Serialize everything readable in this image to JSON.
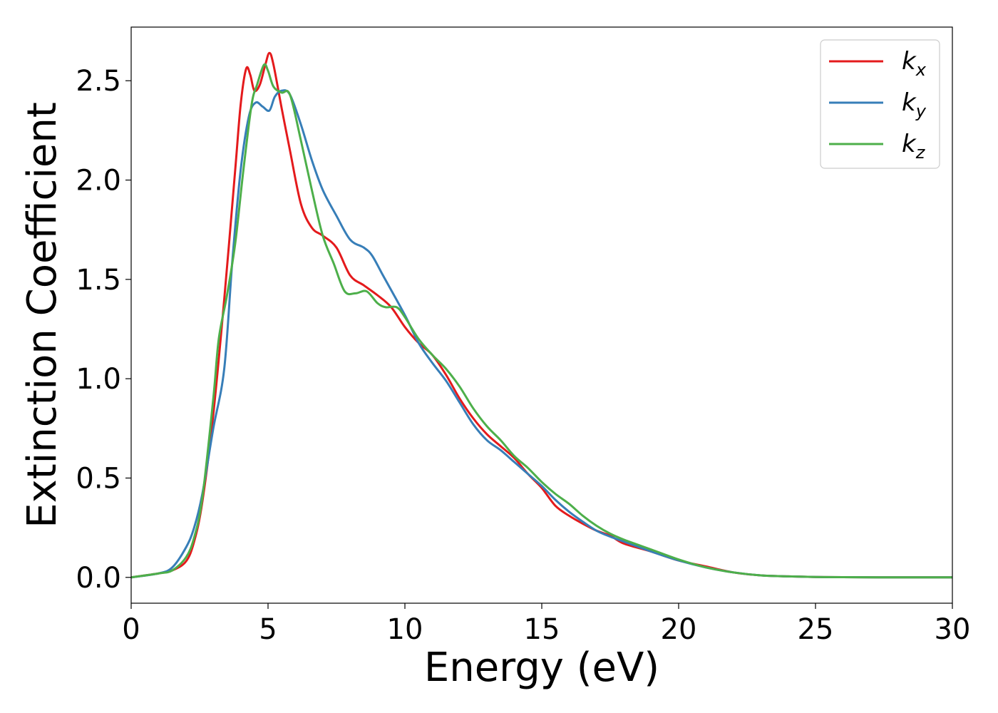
{
  "chart_data": {
    "type": "line",
    "title": "",
    "xlabel": "Energy (eV)",
    "ylabel": "Extinction Coefficient",
    "xlim": [
      0,
      30
    ],
    "ylim": [
      -0.13,
      2.77
    ],
    "xticks": [
      0,
      5,
      10,
      15,
      20,
      25,
      30
    ],
    "yticks": [
      0.0,
      0.5,
      1.0,
      1.5,
      2.0,
      2.5
    ],
    "xtick_labels": [
      "0",
      "5",
      "10",
      "15",
      "20",
      "25",
      "30"
    ],
    "ytick_labels": [
      "0.0",
      "0.5",
      "1.0",
      "1.5",
      "2.0",
      "2.5"
    ],
    "grid": false,
    "legend_position": "top-right",
    "series": [
      {
        "name": "k",
        "subscript": "x",
        "color": "#e41a1c",
        "x": [
          0,
          1,
          1.5,
          2,
          2.3,
          2.6,
          3,
          3.4,
          3.8,
          4.0,
          4.2,
          4.35,
          4.5,
          4.7,
          4.9,
          5.05,
          5.2,
          5.5,
          5.8,
          6.2,
          6.6,
          7.0,
          7.5,
          8.0,
          8.5,
          9.0,
          9.5,
          10,
          10.5,
          11,
          11.5,
          12,
          12.5,
          13,
          13.5,
          14,
          14.5,
          15,
          15.5,
          16,
          16.5,
          17,
          17.5,
          18,
          19,
          20,
          21,
          22,
          23,
          24,
          25,
          26,
          28,
          30
        ],
        "y": [
          0,
          0.02,
          0.035,
          0.08,
          0.18,
          0.38,
          0.82,
          1.4,
          2.05,
          2.38,
          2.56,
          2.53,
          2.45,
          2.48,
          2.58,
          2.64,
          2.58,
          2.36,
          2.15,
          1.88,
          1.76,
          1.72,
          1.66,
          1.52,
          1.47,
          1.42,
          1.36,
          1.26,
          1.18,
          1.12,
          1.02,
          0.9,
          0.8,
          0.72,
          0.66,
          0.6,
          0.52,
          0.45,
          0.36,
          0.31,
          0.27,
          0.235,
          0.21,
          0.17,
          0.13,
          0.085,
          0.055,
          0.025,
          0.01,
          0.005,
          0.002,
          0.001,
          0,
          0
        ]
      },
      {
        "name": "k",
        "subscript": "y",
        "color": "#377eb8",
        "x": [
          0,
          1,
          1.5,
          2,
          2.3,
          2.6,
          3,
          3.4,
          3.7,
          4.0,
          4.3,
          4.55,
          4.8,
          5.05,
          5.25,
          5.5,
          5.8,
          6.2,
          6.6,
          7.0,
          7.5,
          8.0,
          8.5,
          8.8,
          9.2,
          10,
          10.5,
          11,
          11.5,
          12,
          12.5,
          13,
          13.5,
          14,
          14.5,
          15,
          15.5,
          16,
          16.5,
          17,
          17.5,
          18,
          19,
          20,
          21,
          22,
          23,
          24,
          25,
          26,
          28,
          30
        ],
        "y": [
          0,
          0.02,
          0.05,
          0.15,
          0.25,
          0.42,
          0.75,
          1.05,
          1.6,
          2.05,
          2.32,
          2.39,
          2.37,
          2.35,
          2.42,
          2.45,
          2.43,
          2.28,
          2.1,
          1.95,
          1.82,
          1.7,
          1.66,
          1.62,
          1.52,
          1.32,
          1.18,
          1.08,
          0.99,
          0.88,
          0.77,
          0.69,
          0.64,
          0.58,
          0.52,
          0.46,
          0.39,
          0.33,
          0.28,
          0.235,
          0.205,
          0.18,
          0.13,
          0.085,
          0.05,
          0.025,
          0.01,
          0.005,
          0.002,
          0.001,
          0,
          0
        ]
      },
      {
        "name": "k",
        "subscript": "z",
        "color": "#4daf4a",
        "x": [
          0,
          1,
          1.5,
          2,
          2.3,
          2.6,
          3,
          3.2,
          3.5,
          3.8,
          4.1,
          4.4,
          4.6,
          4.85,
          5.0,
          5.2,
          5.5,
          5.8,
          6.2,
          6.6,
          7.0,
          7.4,
          7.8,
          8.2,
          8.6,
          9.0,
          9.3,
          9.7,
          10,
          10.5,
          11,
          11.5,
          12,
          12.5,
          13,
          13.5,
          14,
          14.5,
          15,
          15.5,
          16,
          16.5,
          17,
          17.5,
          18,
          19,
          20,
          21,
          22,
          23,
          24,
          25,
          26,
          28,
          30
        ],
        "y": [
          0,
          0.02,
          0.035,
          0.1,
          0.2,
          0.4,
          0.9,
          1.2,
          1.42,
          1.68,
          2.05,
          2.38,
          2.48,
          2.58,
          2.55,
          2.47,
          2.44,
          2.43,
          2.2,
          1.95,
          1.72,
          1.58,
          1.44,
          1.43,
          1.44,
          1.38,
          1.36,
          1.36,
          1.31,
          1.2,
          1.12,
          1.05,
          0.96,
          0.85,
          0.76,
          0.69,
          0.61,
          0.55,
          0.48,
          0.42,
          0.37,
          0.31,
          0.26,
          0.22,
          0.19,
          0.14,
          0.09,
          0.05,
          0.025,
          0.01,
          0.005,
          0.002,
          0.001,
          0,
          0
        ]
      }
    ]
  }
}
